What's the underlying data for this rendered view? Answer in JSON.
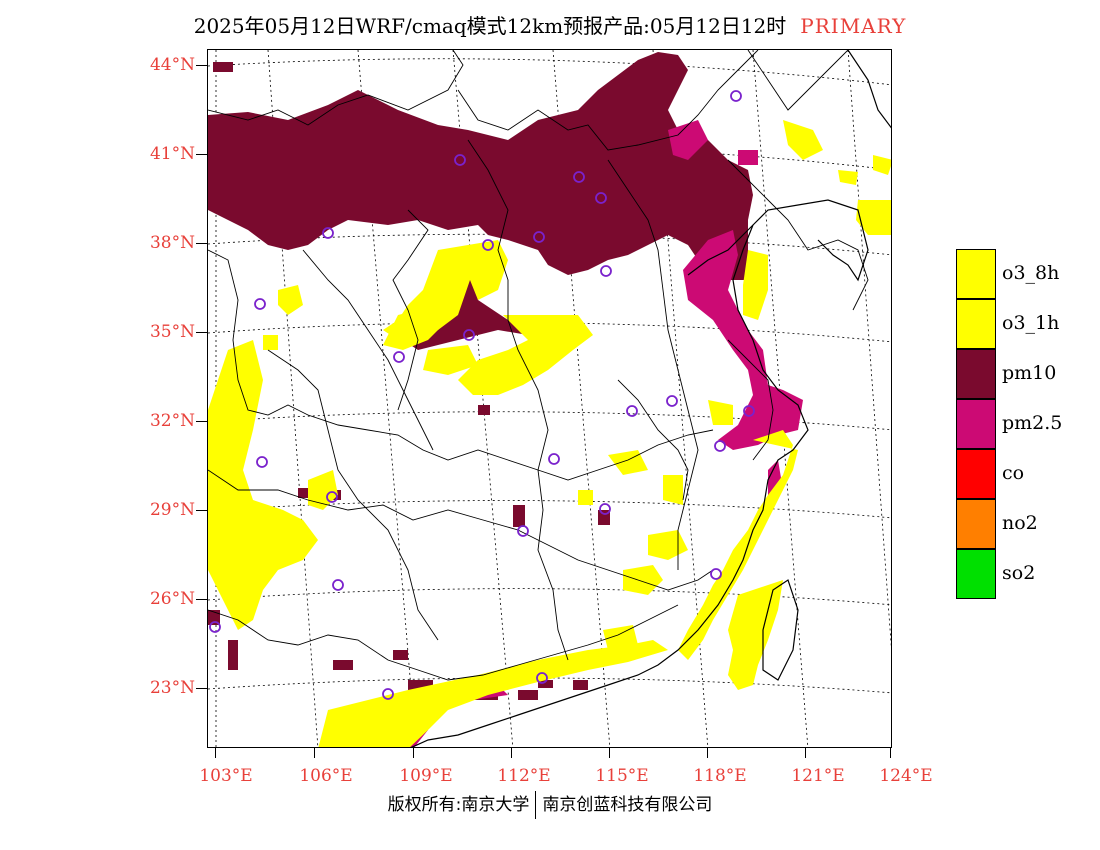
{
  "title": {
    "main": "2025年05月12日WRF/cmaq模式12km预报产品:05月12日12时",
    "tag": "PRIMARY"
  },
  "axes": {
    "lat_labels": [
      "44°N",
      "41°N",
      "38°N",
      "35°N",
      "32°N",
      "29°N",
      "26°N",
      "23°N"
    ],
    "lon_labels": [
      "103°E",
      "106°E",
      "109°E",
      "112°E",
      "115°E",
      "118°E",
      "121°E",
      "124°E"
    ]
  },
  "legend": [
    {
      "label": "o3_8h",
      "color": "#ffff00"
    },
    {
      "label": "o3_1h",
      "color": "#ffff00"
    },
    {
      "label": "pm10",
      "color": "#7a0a2e"
    },
    {
      "label": "pm2.5",
      "color": "#cc0a74"
    },
    {
      "label": "co",
      "color": "#ff0000"
    },
    {
      "label": "no2",
      "color": "#ff7f00"
    },
    {
      "label": "so2",
      "color": "#00e000"
    }
  ],
  "copyright": {
    "left": "版权所有:南京大学",
    "right": "南京创蓝科技有限公司"
  }
}
